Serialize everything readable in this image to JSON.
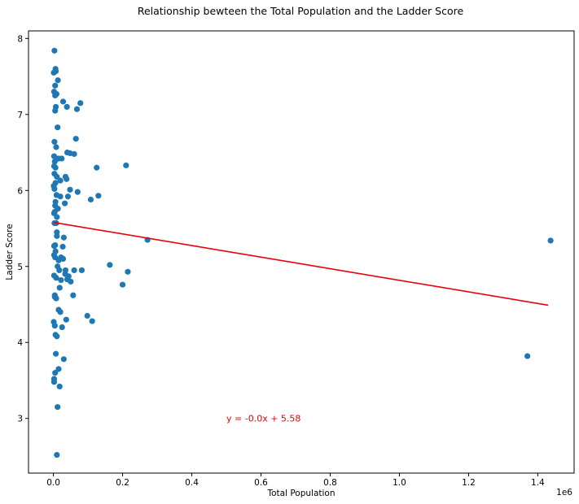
{
  "chart_data": {
    "type": "scatter",
    "title": "Relationship bewteen the Total Population and the Ladder Score",
    "xlabel": "Total Population",
    "ylabel": "Ladder Score",
    "x_offset_label": "1e6",
    "xlim": [
      -0.072,
      1.505
    ],
    "ylim": [
      2.28,
      8.1
    ],
    "x_ticks": [
      0.0,
      0.2,
      0.4,
      0.6,
      0.8,
      1.0,
      1.2,
      1.4
    ],
    "x_tick_labels": [
      "0.0",
      "0.2",
      "0.4",
      "0.6",
      "0.8",
      "1.0",
      "1.2",
      "1.4"
    ],
    "y_ticks": [
      3,
      4,
      5,
      6,
      7,
      8
    ],
    "y_tick_labels": [
      "3",
      "4",
      "5",
      "6",
      "7",
      "8"
    ],
    "grid": false,
    "colors": {
      "points": "#1f77b4",
      "regression": "#e8000b",
      "annotation": "#e8000b"
    },
    "annotation": {
      "text": "y = -0.0x + 5.58",
      "x": 0.5,
      "y": 3.0
    },
    "regression_line": {
      "x": [
        0.0,
        1.43
      ],
      "y": [
        5.58,
        4.49
      ]
    },
    "series": [
      {
        "x": [
          0.003,
          0.006,
          0.001,
          0.007,
          0.005,
          0.013,
          0.002,
          0.009,
          0.005,
          0.028,
          0.039,
          0.078,
          0.007,
          0.005,
          0.068,
          0.012,
          0.065,
          0.003,
          0.008,
          0.002,
          0.04,
          0.048,
          0.06,
          0.024,
          0.004,
          0.002,
          0.015,
          0.006,
          0.035,
          0.003,
          0.038,
          0.02,
          0.001,
          0.125,
          0.21,
          0.01,
          0.006,
          0.003,
          0.048,
          0.07,
          0.02,
          0.009,
          0.042,
          0.13,
          0.108,
          0.006,
          0.033,
          0.005,
          0.013,
          0.002,
          0.004,
          0.01,
          0.008,
          0.003,
          0.01,
          0.01,
          0.03,
          0.272,
          0.005,
          0.002,
          0.027,
          0.006,
          0.002,
          0.005,
          0.022,
          0.028,
          0.015,
          0.012,
          0.035,
          0.163,
          0.06,
          0.017,
          0.082,
          0.215,
          0.034,
          0.044,
          0.002,
          0.008,
          0.04,
          0.022,
          0.05,
          0.2,
          0.018,
          0.004,
          0.004,
          0.057,
          0.008,
          0.015,
          0.02,
          0.098,
          0.112,
          0.001,
          0.004,
          0.025,
          0.006,
          0.01,
          0.007,
          0.03,
          0.015,
          0.005,
          0.002,
          0.002,
          0.018,
          0.012,
          0.01,
          0.037,
          1.37,
          1.437
        ],
        "y": [
          7.84,
          7.6,
          7.55,
          7.57,
          7.38,
          7.45,
          7.3,
          7.27,
          7.25,
          7.17,
          7.1,
          7.15,
          7.1,
          7.05,
          7.07,
          6.83,
          6.68,
          6.64,
          6.57,
          6.45,
          6.5,
          6.49,
          6.48,
          6.42,
          6.38,
          6.32,
          6.42,
          6.3,
          6.18,
          6.22,
          6.15,
          6.13,
          6.06,
          6.3,
          6.33,
          6.18,
          6.1,
          6.02,
          6.01,
          5.98,
          5.92,
          5.94,
          5.92,
          5.93,
          5.88,
          5.85,
          5.83,
          5.8,
          5.76,
          5.7,
          5.72,
          5.65,
          5.57,
          5.57,
          5.45,
          5.4,
          5.38,
          5.35,
          5.28,
          5.27,
          5.26,
          5.2,
          5.15,
          5.12,
          5.12,
          5.1,
          5.08,
          5.0,
          4.95,
          5.02,
          4.95,
          4.95,
          4.95,
          4.93,
          4.9,
          4.87,
          4.88,
          4.85,
          4.83,
          4.82,
          4.8,
          4.76,
          4.72,
          4.62,
          4.6,
          4.62,
          4.58,
          4.43,
          4.4,
          4.35,
          4.28,
          4.27,
          4.22,
          4.2,
          4.1,
          4.08,
          3.85,
          3.78,
          3.65,
          3.6,
          3.52,
          3.48,
          3.42,
          3.15,
          2.52,
          4.3,
          3.82,
          5.34
        ]
      }
    ]
  }
}
